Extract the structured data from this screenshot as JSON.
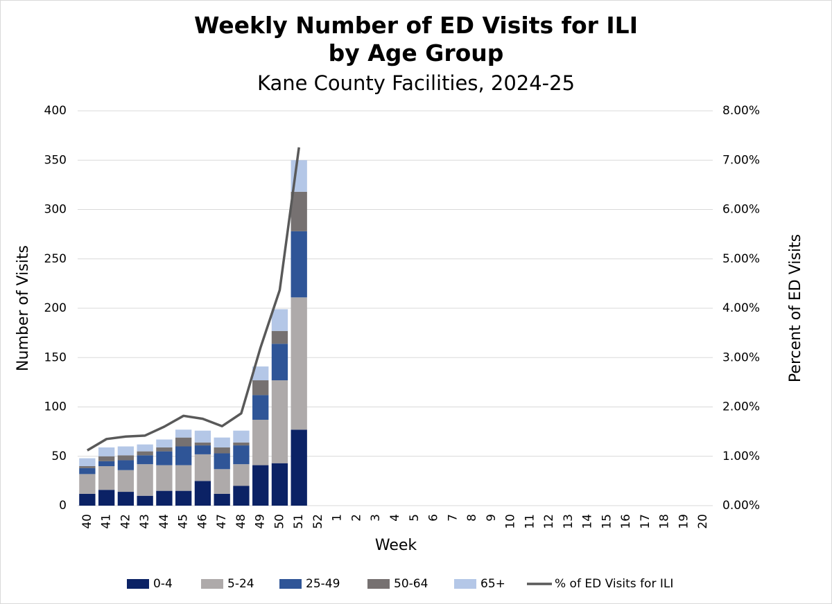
{
  "chart_data": {
    "type": "bar",
    "stacked": true,
    "title": "Weekly Number of ED Visits for ILI by Age Group",
    "subtitle": "Kane County Facilities, 2024-25",
    "x_label": "Week",
    "y_label": "Number of Visits",
    "y2_label": "Percent of ED Visits",
    "categories": [
      "40",
      "41",
      "42",
      "43",
      "44",
      "45",
      "46",
      "47",
      "48",
      "49",
      "50",
      "51",
      "52",
      "1",
      "2",
      "3",
      "4",
      "5",
      "6",
      "7",
      "8",
      "9",
      "10",
      "11",
      "12",
      "13",
      "14",
      "15",
      "16",
      "17",
      "18",
      "19",
      "20"
    ],
    "series": [
      {
        "name": "0-4",
        "color": "#0b2265",
        "values": [
          12,
          16,
          14,
          10,
          15,
          15,
          25,
          12,
          20,
          41,
          43,
          77,
          null,
          null,
          null,
          null,
          null,
          null,
          null,
          null,
          null,
          null,
          null,
          null,
          null,
          null,
          null,
          null,
          null,
          null,
          null,
          null,
          null
        ]
      },
      {
        "name": "5-24",
        "color": "#aeaaaa",
        "values": [
          20,
          24,
          22,
          32,
          26,
          26,
          27,
          25,
          22,
          46,
          84,
          134,
          null,
          null,
          null,
          null,
          null,
          null,
          null,
          null,
          null,
          null,
          null,
          null,
          null,
          null,
          null,
          null,
          null,
          null,
          null,
          null,
          null
        ]
      },
      {
        "name": "25-49",
        "color": "#2f5597",
        "values": [
          6,
          5,
          10,
          9,
          14,
          19,
          9,
          16,
          19,
          25,
          37,
          67,
          null,
          null,
          null,
          null,
          null,
          null,
          null,
          null,
          null,
          null,
          null,
          null,
          null,
          null,
          null,
          null,
          null,
          null,
          null,
          null,
          null
        ]
      },
      {
        "name": "50-64",
        "color": "#767171",
        "values": [
          2,
          5,
          5,
          4,
          4,
          9,
          3,
          6,
          3,
          15,
          13,
          40,
          null,
          null,
          null,
          null,
          null,
          null,
          null,
          null,
          null,
          null,
          null,
          null,
          null,
          null,
          null,
          null,
          null,
          null,
          null,
          null,
          null
        ]
      },
      {
        "name": "65+",
        "color": "#b4c7e7",
        "values": [
          8,
          9,
          9,
          7,
          8,
          8,
          12,
          10,
          12,
          14,
          22,
          32,
          null,
          null,
          null,
          null,
          null,
          null,
          null,
          null,
          null,
          null,
          null,
          null,
          null,
          null,
          null,
          null,
          null,
          null,
          null,
          null,
          null
        ]
      },
      {
        "name": "% of ED Visits for ILI",
        "type": "line",
        "axis": "y2",
        "color": "#595959",
        "values": [
          1.12,
          1.35,
          1.4,
          1.42,
          1.6,
          1.82,
          1.76,
          1.61,
          1.87,
          3.2,
          4.37,
          7.26,
          null,
          null,
          null,
          null,
          null,
          null,
          null,
          null,
          null,
          null,
          null,
          null,
          null,
          null,
          null,
          null,
          null,
          null,
          null,
          null,
          null
        ]
      }
    ],
    "ylim": [
      0,
      400
    ],
    "yticks": [
      0,
      50,
      100,
      150,
      200,
      250,
      300,
      350,
      400
    ],
    "y2lim": [
      0,
      8
    ],
    "y2ticks": [
      {
        "value": 0,
        "label": "0.00%"
      },
      {
        "value": 1,
        "label": "1.00%"
      },
      {
        "value": 2,
        "label": "2.00%"
      },
      {
        "value": 3,
        "label": "3.00%"
      },
      {
        "value": 4,
        "label": "4.00%"
      },
      {
        "value": 5,
        "label": "5.00%"
      },
      {
        "value": 6,
        "label": "6.00%"
      },
      {
        "value": 7,
        "label": "7.00%"
      },
      {
        "value": 8,
        "label": "8.00%"
      }
    ],
    "grid": true,
    "legend": "bottom"
  }
}
